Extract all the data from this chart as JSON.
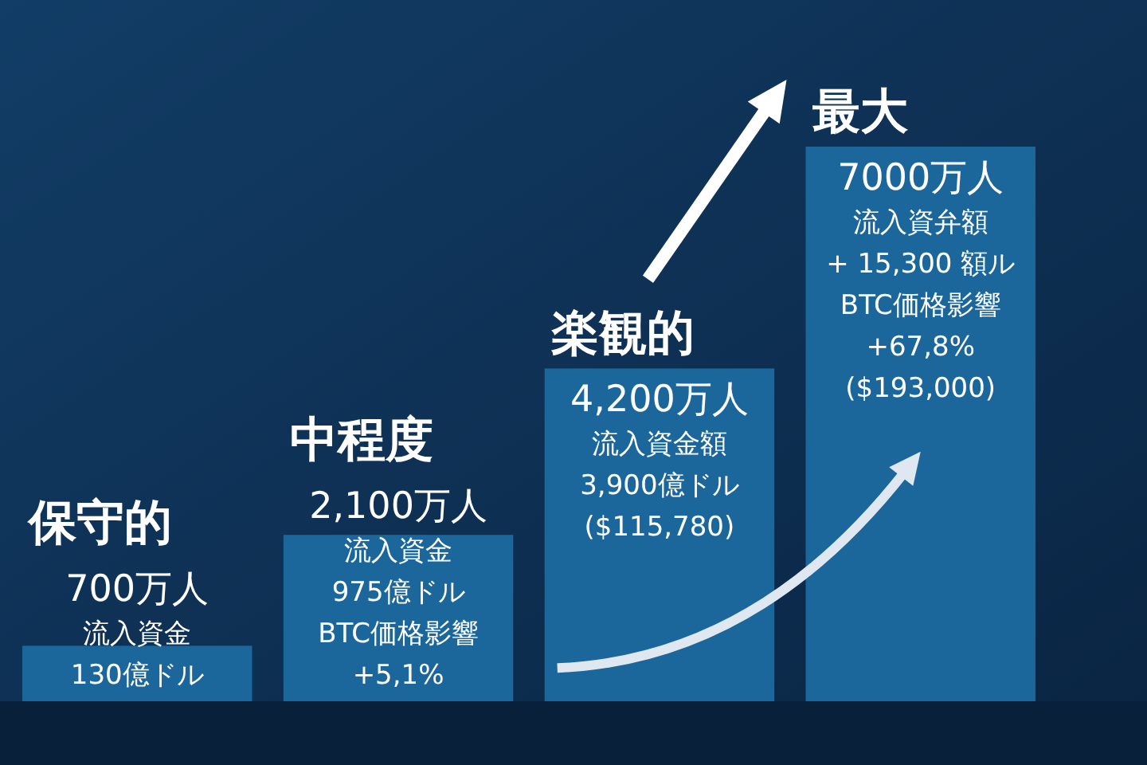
{
  "chart_data": {
    "type": "bar",
    "categories": [
      "保守的",
      "中程度",
      "楽観的",
      "最大"
    ],
    "values": [
      700,
      2100,
      4200,
      7000
    ],
    "color": "#1b679c",
    "value_labels": [
      "700万人",
      "2,100万人",
      "4,200万人",
      "7000万人"
    ],
    "annotations": [
      "流入資金",
      "130億ドル",
      "流入資金",
      "975億ドル",
      "BTC価格影響",
      "+5,1%",
      "流入資金額",
      "3,900億ドル",
      "($115,780)",
      "流入資弁額",
      "+ 15,300 額ル",
      "BTC価格影響",
      "+67,8%",
      "($193,000)"
    ]
  }
}
